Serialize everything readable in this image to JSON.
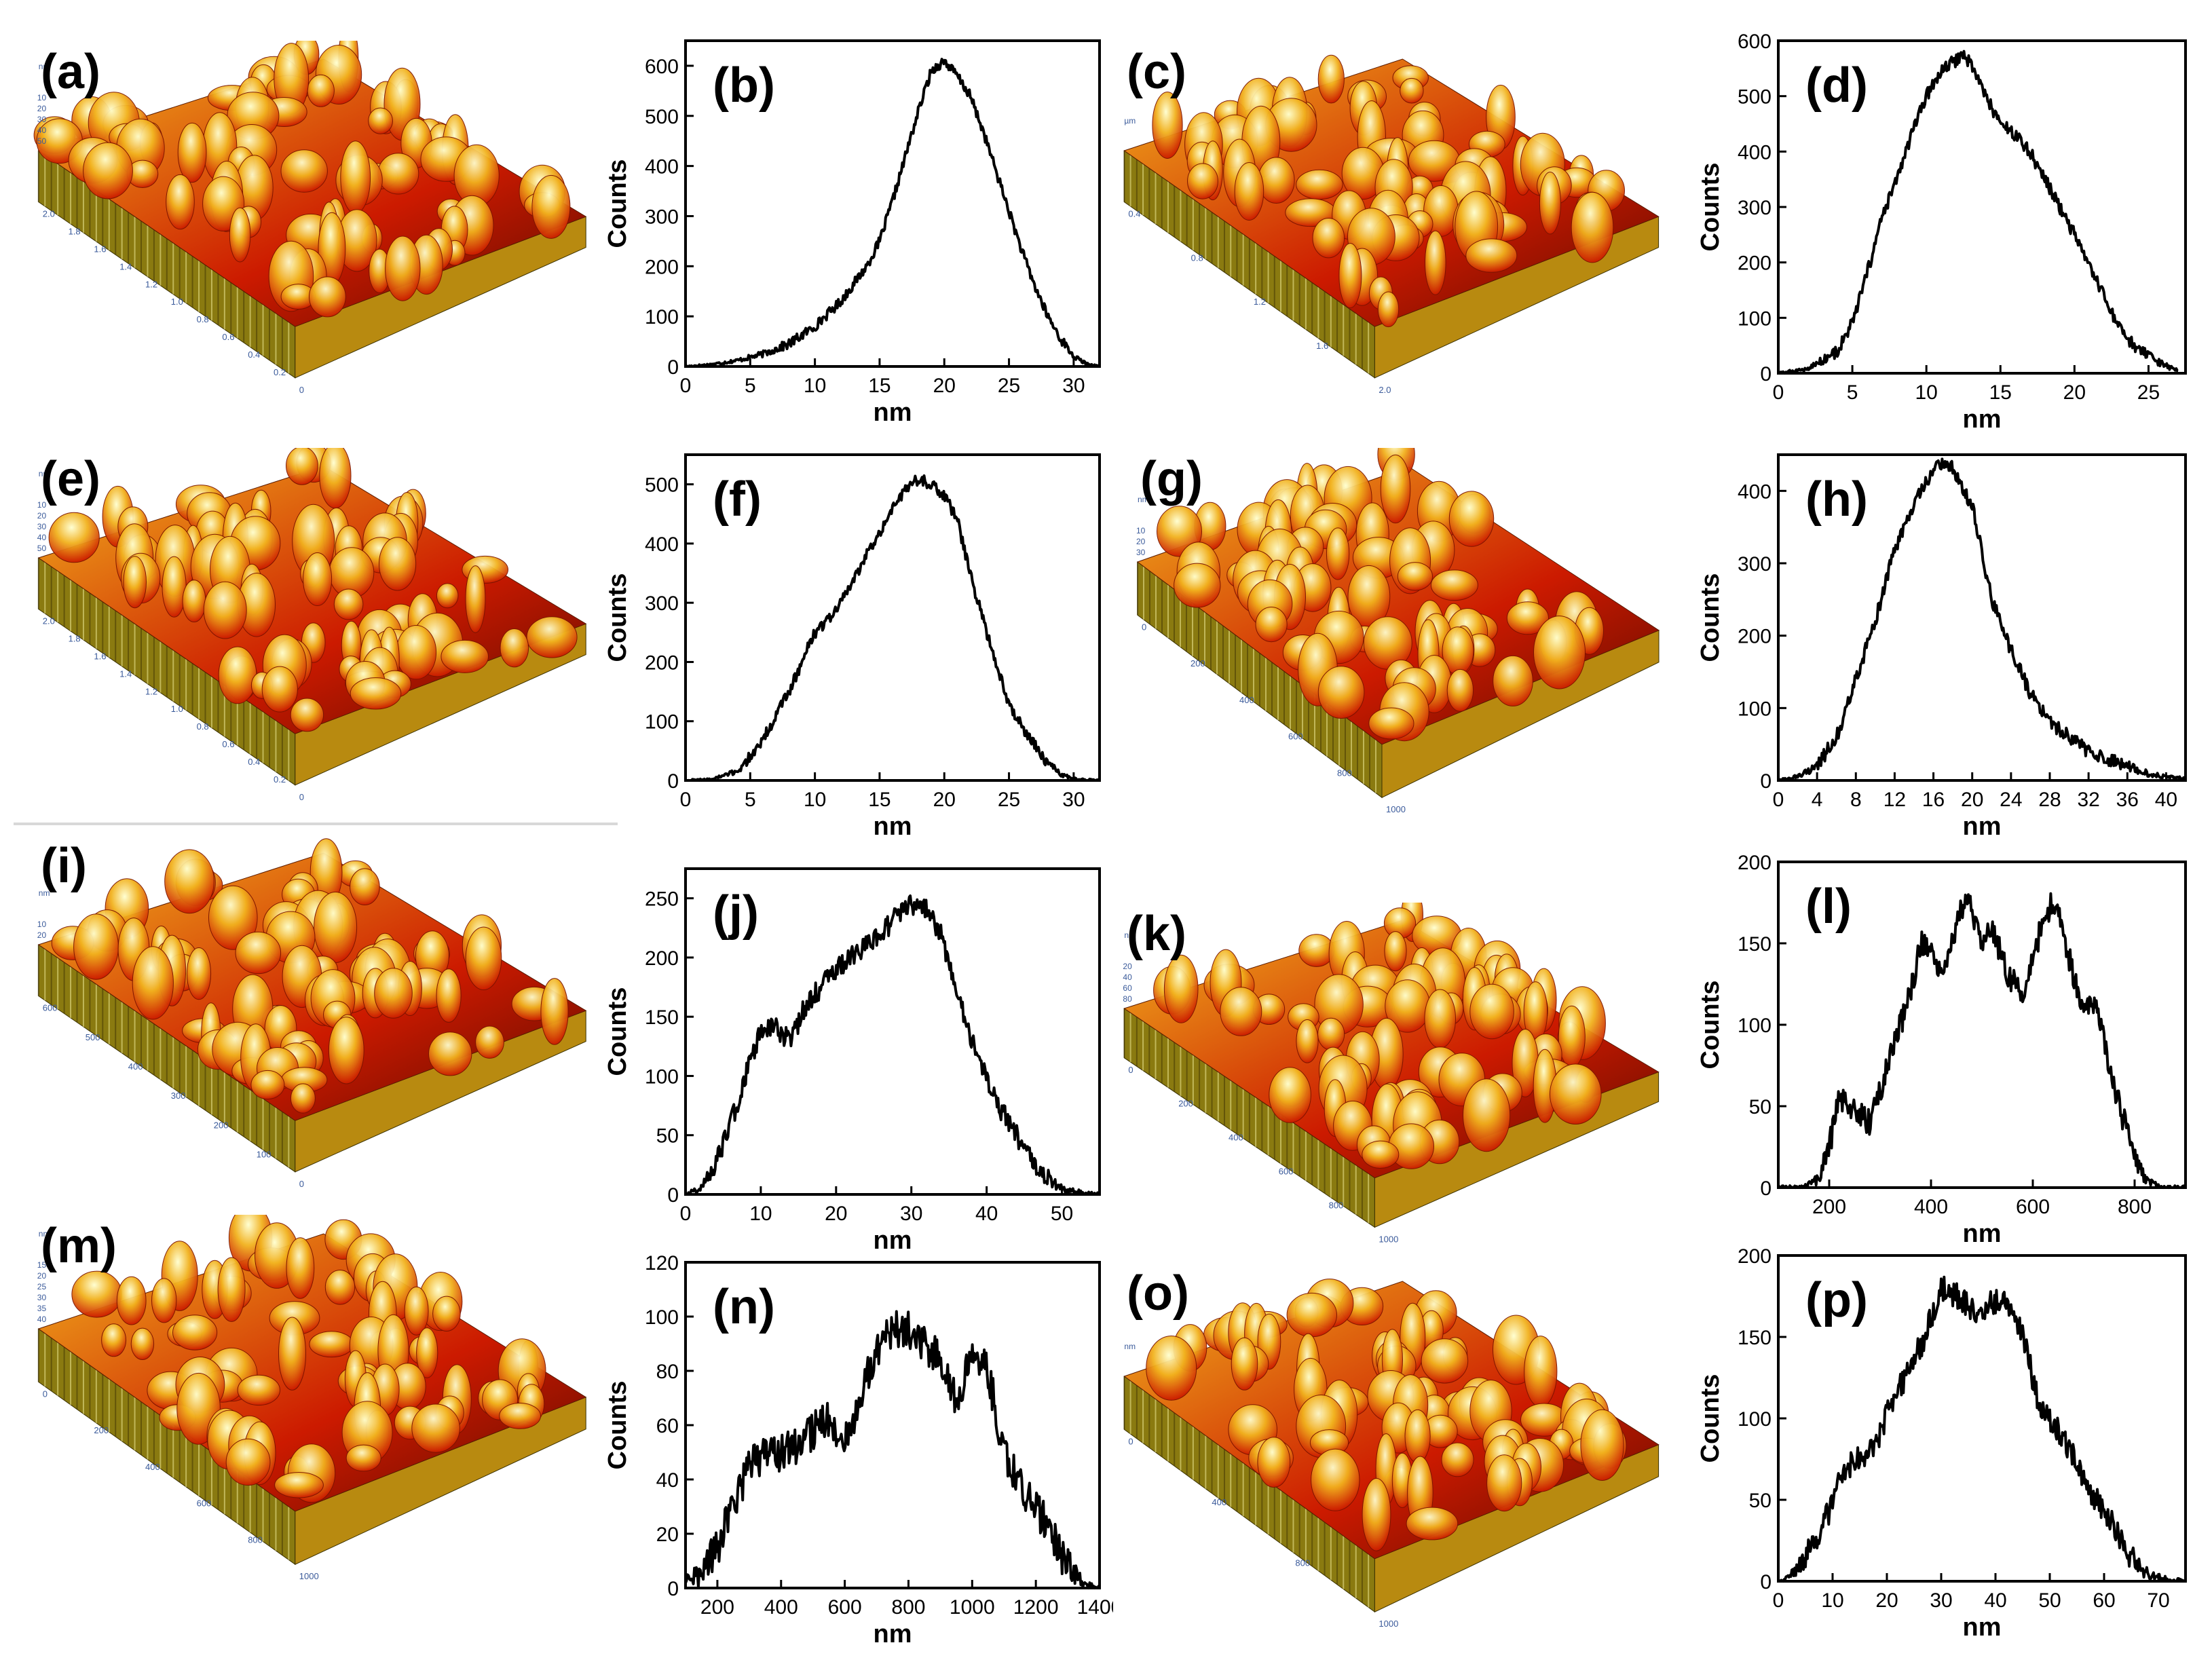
{
  "figure_colors": {
    "frame": "#000000",
    "curve": "#000000",
    "tick_text": "#000000",
    "surface_high": "#ffffd0",
    "surface_mid": "#f2b21e",
    "surface_low": "#cc1a00",
    "surface_base": "#5a0a00"
  },
  "topo_panels": [
    {
      "label": "(a)",
      "scale": "nm",
      "axis_ticks": [
        "2.0",
        "1.8",
        "1.6",
        "1.4",
        "1.2",
        "1.0",
        "0.8",
        "0.6",
        "0.4",
        "0.2",
        "0"
      ],
      "z_ticks": [
        "50",
        "40",
        "30",
        "20",
        "10"
      ]
    },
    {
      "label": "(c)",
      "scale": "µm",
      "axis_ticks": [
        "0.4",
        "0.8",
        "1.2",
        "1.6",
        "2.0"
      ],
      "z_ticks": []
    },
    {
      "label": "(e)",
      "scale": "nm",
      "axis_ticks": [
        "2.0",
        "1.8",
        "1.6",
        "1.4",
        "1.2",
        "1.0",
        "0.8",
        "0.6",
        "0.4",
        "0.2",
        "0"
      ],
      "z_ticks": [
        "50",
        "40",
        "30",
        "20",
        "10"
      ]
    },
    {
      "label": "(g)",
      "scale": "nm",
      "axis_ticks": [
        "0",
        "200",
        "400",
        "600",
        "800",
        "1000"
      ],
      "z_ticks": [
        "30",
        "20",
        "10"
      ]
    },
    {
      "label": "(i)",
      "scale": "nm",
      "axis_ticks": [
        "600",
        "500",
        "400",
        "300",
        "200",
        "100",
        "0"
      ],
      "z_ticks": [
        "20",
        "10"
      ]
    },
    {
      "label": "(k)",
      "scale": "nm",
      "axis_ticks": [
        "0",
        "200",
        "400",
        "600",
        "800",
        "1000"
      ],
      "z_ticks": [
        "80",
        "60",
        "40",
        "20"
      ]
    },
    {
      "label": "(m)",
      "scale": "nm",
      "axis_ticks": [
        "0",
        "200",
        "400",
        "600",
        "800",
        "1000"
      ],
      "z_ticks": [
        "40",
        "35",
        "30",
        "25",
        "20",
        "15"
      ]
    },
    {
      "label": "(o)",
      "scale": "nm",
      "axis_ticks": [
        "0",
        "400",
        "800",
        "1000"
      ],
      "z_ticks": []
    }
  ],
  "chart_data": [
    {
      "type": "line",
      "label": "(b)",
      "xlabel": "nm",
      "ylabel": "Counts",
      "xlim": [
        0,
        32
      ],
      "ylim": [
        0,
        650
      ],
      "xticks": [
        0,
        5,
        10,
        15,
        20,
        25,
        30
      ],
      "yticks": [
        0,
        100,
        200,
        300,
        400,
        500,
        600
      ],
      "x": [
        0,
        2,
        4,
        6,
        8,
        10,
        12,
        14,
        15,
        16,
        17,
        18,
        19,
        20,
        21,
        22,
        23,
        24,
        25,
        26,
        27,
        28,
        29,
        30,
        31,
        32
      ],
      "y": [
        0,
        4,
        12,
        25,
        45,
        80,
        130,
        200,
        250,
        330,
        420,
        510,
        590,
        610,
        580,
        540,
        470,
        390,
        310,
        230,
        160,
        100,
        55,
        20,
        5,
        0
      ],
      "noise": 10
    },
    {
      "type": "line",
      "label": "(d)",
      "xlabel": "nm",
      "ylabel": "Counts",
      "xlim": [
        0,
        27.5
      ],
      "ylim": [
        0,
        600
      ],
      "xticks": [
        0,
        5,
        10,
        15,
        20,
        25
      ],
      "yticks": [
        0,
        100,
        200,
        300,
        400,
        500,
        600
      ],
      "x": [
        0,
        2,
        4,
        5,
        6,
        7,
        8,
        9,
        10,
        11,
        12,
        12.5,
        13,
        14,
        15,
        16,
        17,
        18,
        19,
        20,
        21,
        22,
        23,
        24,
        25,
        26,
        27
      ],
      "y": [
        0,
        8,
        40,
        90,
        180,
        280,
        350,
        430,
        500,
        545,
        565,
        575,
        560,
        500,
        450,
        430,
        400,
        350,
        300,
        250,
        190,
        140,
        80,
        50,
        30,
        15,
        5
      ],
      "noise": 12
    },
    {
      "type": "line",
      "label": "(f)",
      "xlabel": "nm",
      "ylabel": "Counts",
      "xlim": [
        0,
        32
      ],
      "ylim": [
        0,
        550
      ],
      "xticks": [
        0,
        5,
        10,
        15,
        20,
        25,
        30
      ],
      "yticks": [
        0,
        100,
        200,
        300,
        400,
        500
      ],
      "x": [
        0,
        2,
        4,
        5,
        6,
        7,
        8,
        9,
        10,
        11,
        12,
        13,
        14,
        15,
        16,
        17,
        18,
        19,
        20,
        21,
        22,
        23,
        24,
        25,
        26,
        27,
        28,
        29,
        30,
        31,
        32
      ],
      "y": [
        0,
        2,
        15,
        40,
        70,
        110,
        150,
        200,
        250,
        270,
        300,
        340,
        380,
        420,
        460,
        490,
        510,
        500,
        480,
        440,
        350,
        270,
        200,
        130,
        90,
        60,
        30,
        10,
        3,
        1,
        0
      ],
      "noise": 10
    },
    {
      "type": "line",
      "label": "(h)",
      "xlabel": "nm",
      "ylabel": "Counts",
      "xlim": [
        0,
        42
      ],
      "ylim": [
        0,
        450
      ],
      "xticks": [
        0,
        4,
        8,
        12,
        16,
        20,
        24,
        28,
        32,
        36,
        40
      ],
      "yticks": [
        0,
        100,
        200,
        300,
        400
      ],
      "x": [
        0,
        2,
        4,
        6,
        8,
        10,
        12,
        14,
        16,
        17,
        18,
        20,
        22,
        24,
        26,
        28,
        30,
        32,
        34,
        36,
        38,
        40,
        42
      ],
      "y": [
        0,
        5,
        20,
        60,
        140,
        220,
        320,
        380,
        430,
        440,
        430,
        380,
        250,
        180,
        120,
        80,
        60,
        40,
        30,
        20,
        10,
        5,
        2
      ],
      "noise": 10
    },
    {
      "type": "line",
      "label": "(j)",
      "xlabel": "nm",
      "ylabel": "Counts",
      "xlim": [
        0,
        55
      ],
      "ylim": [
        0,
        275
      ],
      "xticks": [
        0,
        10,
        20,
        30,
        40,
        50
      ],
      "yticks": [
        0,
        50,
        100,
        150,
        200,
        250
      ],
      "x": [
        0,
        2,
        4,
        6,
        8,
        10,
        12,
        14,
        16,
        18,
        20,
        22,
        24,
        26,
        28,
        30,
        32,
        34,
        36,
        38,
        40,
        42,
        44,
        46,
        48,
        50,
        52,
        55
      ],
      "y": [
        0,
        5,
        25,
        60,
        100,
        140,
        140,
        130,
        160,
        175,
        190,
        200,
        210,
        220,
        235,
        245,
        240,
        220,
        170,
        130,
        100,
        70,
        50,
        30,
        15,
        5,
        2,
        0
      ],
      "noise": 9
    },
    {
      "type": "line",
      "label": "(l)",
      "xlabel": "nm",
      "ylabel": "Counts",
      "xlim": [
        100,
        900
      ],
      "ylim": [
        0,
        200
      ],
      "xticks": [
        200,
        400,
        600,
        800
      ],
      "yticks": [
        0,
        50,
        100,
        150,
        200
      ],
      "x": [
        100,
        150,
        180,
        200,
        220,
        240,
        260,
        280,
        300,
        330,
        360,
        380,
        400,
        420,
        440,
        460,
        470,
        500,
        520,
        550,
        580,
        600,
        620,
        640,
        650,
        680,
        700,
        720,
        740,
        760,
        780,
        800,
        820,
        850,
        900
      ],
      "y": [
        0,
        0,
        5,
        25,
        55,
        50,
        45,
        40,
        60,
        90,
        120,
        150,
        145,
        135,
        150,
        170,
        180,
        150,
        160,
        130,
        120,
        140,
        165,
        175,
        170,
        130,
        110,
        115,
        90,
        60,
        40,
        20,
        5,
        0,
        0
      ],
      "noise": 8
    },
    {
      "type": "line",
      "label": "(n)",
      "xlabel": "nm",
      "ylabel": "Counts",
      "xlim": [
        100,
        1400
      ],
      "ylim": [
        0,
        120
      ],
      "xticks": [
        200,
        400,
        600,
        800,
        1000,
        1200,
        1400
      ],
      "yticks": [
        0,
        20,
        40,
        60,
        80,
        100,
        120
      ],
      "x": [
        100,
        150,
        200,
        250,
        300,
        350,
        400,
        450,
        500,
        550,
        600,
        650,
        700,
        750,
        800,
        850,
        900,
        950,
        1000,
        1050,
        1100,
        1150,
        1200,
        1250,
        1300,
        1350,
        1400
      ],
      "y": [
        2,
        5,
        15,
        30,
        45,
        50,
        50,
        52,
        58,
        62,
        55,
        70,
        88,
        95,
        95,
        90,
        85,
        70,
        85,
        80,
        50,
        38,
        30,
        20,
        8,
        1,
        0
      ],
      "noise": 7
    },
    {
      "type": "line",
      "label": "(p)",
      "xlabel": "nm",
      "ylabel": "Counts",
      "xlim": [
        0,
        75
      ],
      "ylim": [
        0,
        200
      ],
      "xticks": [
        0,
        10,
        20,
        30,
        40,
        50,
        60,
        70
      ],
      "yticks": [
        0,
        50,
        100,
        150,
        200
      ],
      "x": [
        0,
        3,
        6,
        9,
        12,
        15,
        18,
        21,
        24,
        27,
        30,
        33,
        36,
        39,
        42,
        45,
        48,
        51,
        54,
        57,
        60,
        63,
        66,
        69,
        72,
        75
      ],
      "y": [
        0,
        5,
        20,
        40,
        70,
        75,
        85,
        110,
        130,
        150,
        180,
        175,
        165,
        170,
        175,
        150,
        110,
        95,
        80,
        55,
        45,
        25,
        10,
        3,
        1,
        0
      ],
      "noise": 8
    }
  ]
}
